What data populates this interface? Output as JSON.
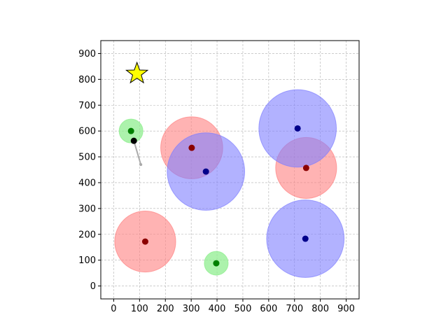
{
  "chart_data": {
    "type": "scatter",
    "title": "",
    "xlabel": "",
    "ylabel": "",
    "xlim": [
      -50,
      950
    ],
    "ylim": [
      -50,
      950
    ],
    "x_ticks": [
      0,
      100,
      200,
      300,
      400,
      500,
      600,
      700,
      800,
      900
    ],
    "y_ticks": [
      0,
      100,
      200,
      300,
      400,
      500,
      600,
      700,
      800,
      900
    ],
    "grid": true,
    "legend": "none",
    "colors": {
      "red_fill": "#ff8080",
      "red_point": "#8b0000",
      "blue_fill": "#7f7fff",
      "blue_point": "#00008b",
      "green_fill": "#90ee90",
      "green_point": "#008000",
      "star_fill": "#ffff00",
      "trail": "#aaaaaa",
      "agent": "#000000"
    },
    "red_circles": [
      {
        "x": 302,
        "y": 535,
        "r": 120
      },
      {
        "x": 745,
        "y": 457,
        "r": 118
      },
      {
        "x": 122,
        "y": 172,
        "r": 118
      }
    ],
    "blue_circles": [
      {
        "x": 357,
        "y": 443,
        "r": 150
      },
      {
        "x": 712,
        "y": 610,
        "r": 150
      },
      {
        "x": 742,
        "y": 183,
        "r": 150
      }
    ],
    "green_circles": [
      {
        "x": 67,
        "y": 600,
        "r": 46
      },
      {
        "x": 397,
        "y": 88,
        "r": 46
      }
    ],
    "star": {
      "x": 90,
      "y": 822
    },
    "agent": {
      "x": 78,
      "y": 562
    },
    "trail": [
      [
        78,
        562
      ],
      [
        105,
        470
      ]
    ]
  }
}
